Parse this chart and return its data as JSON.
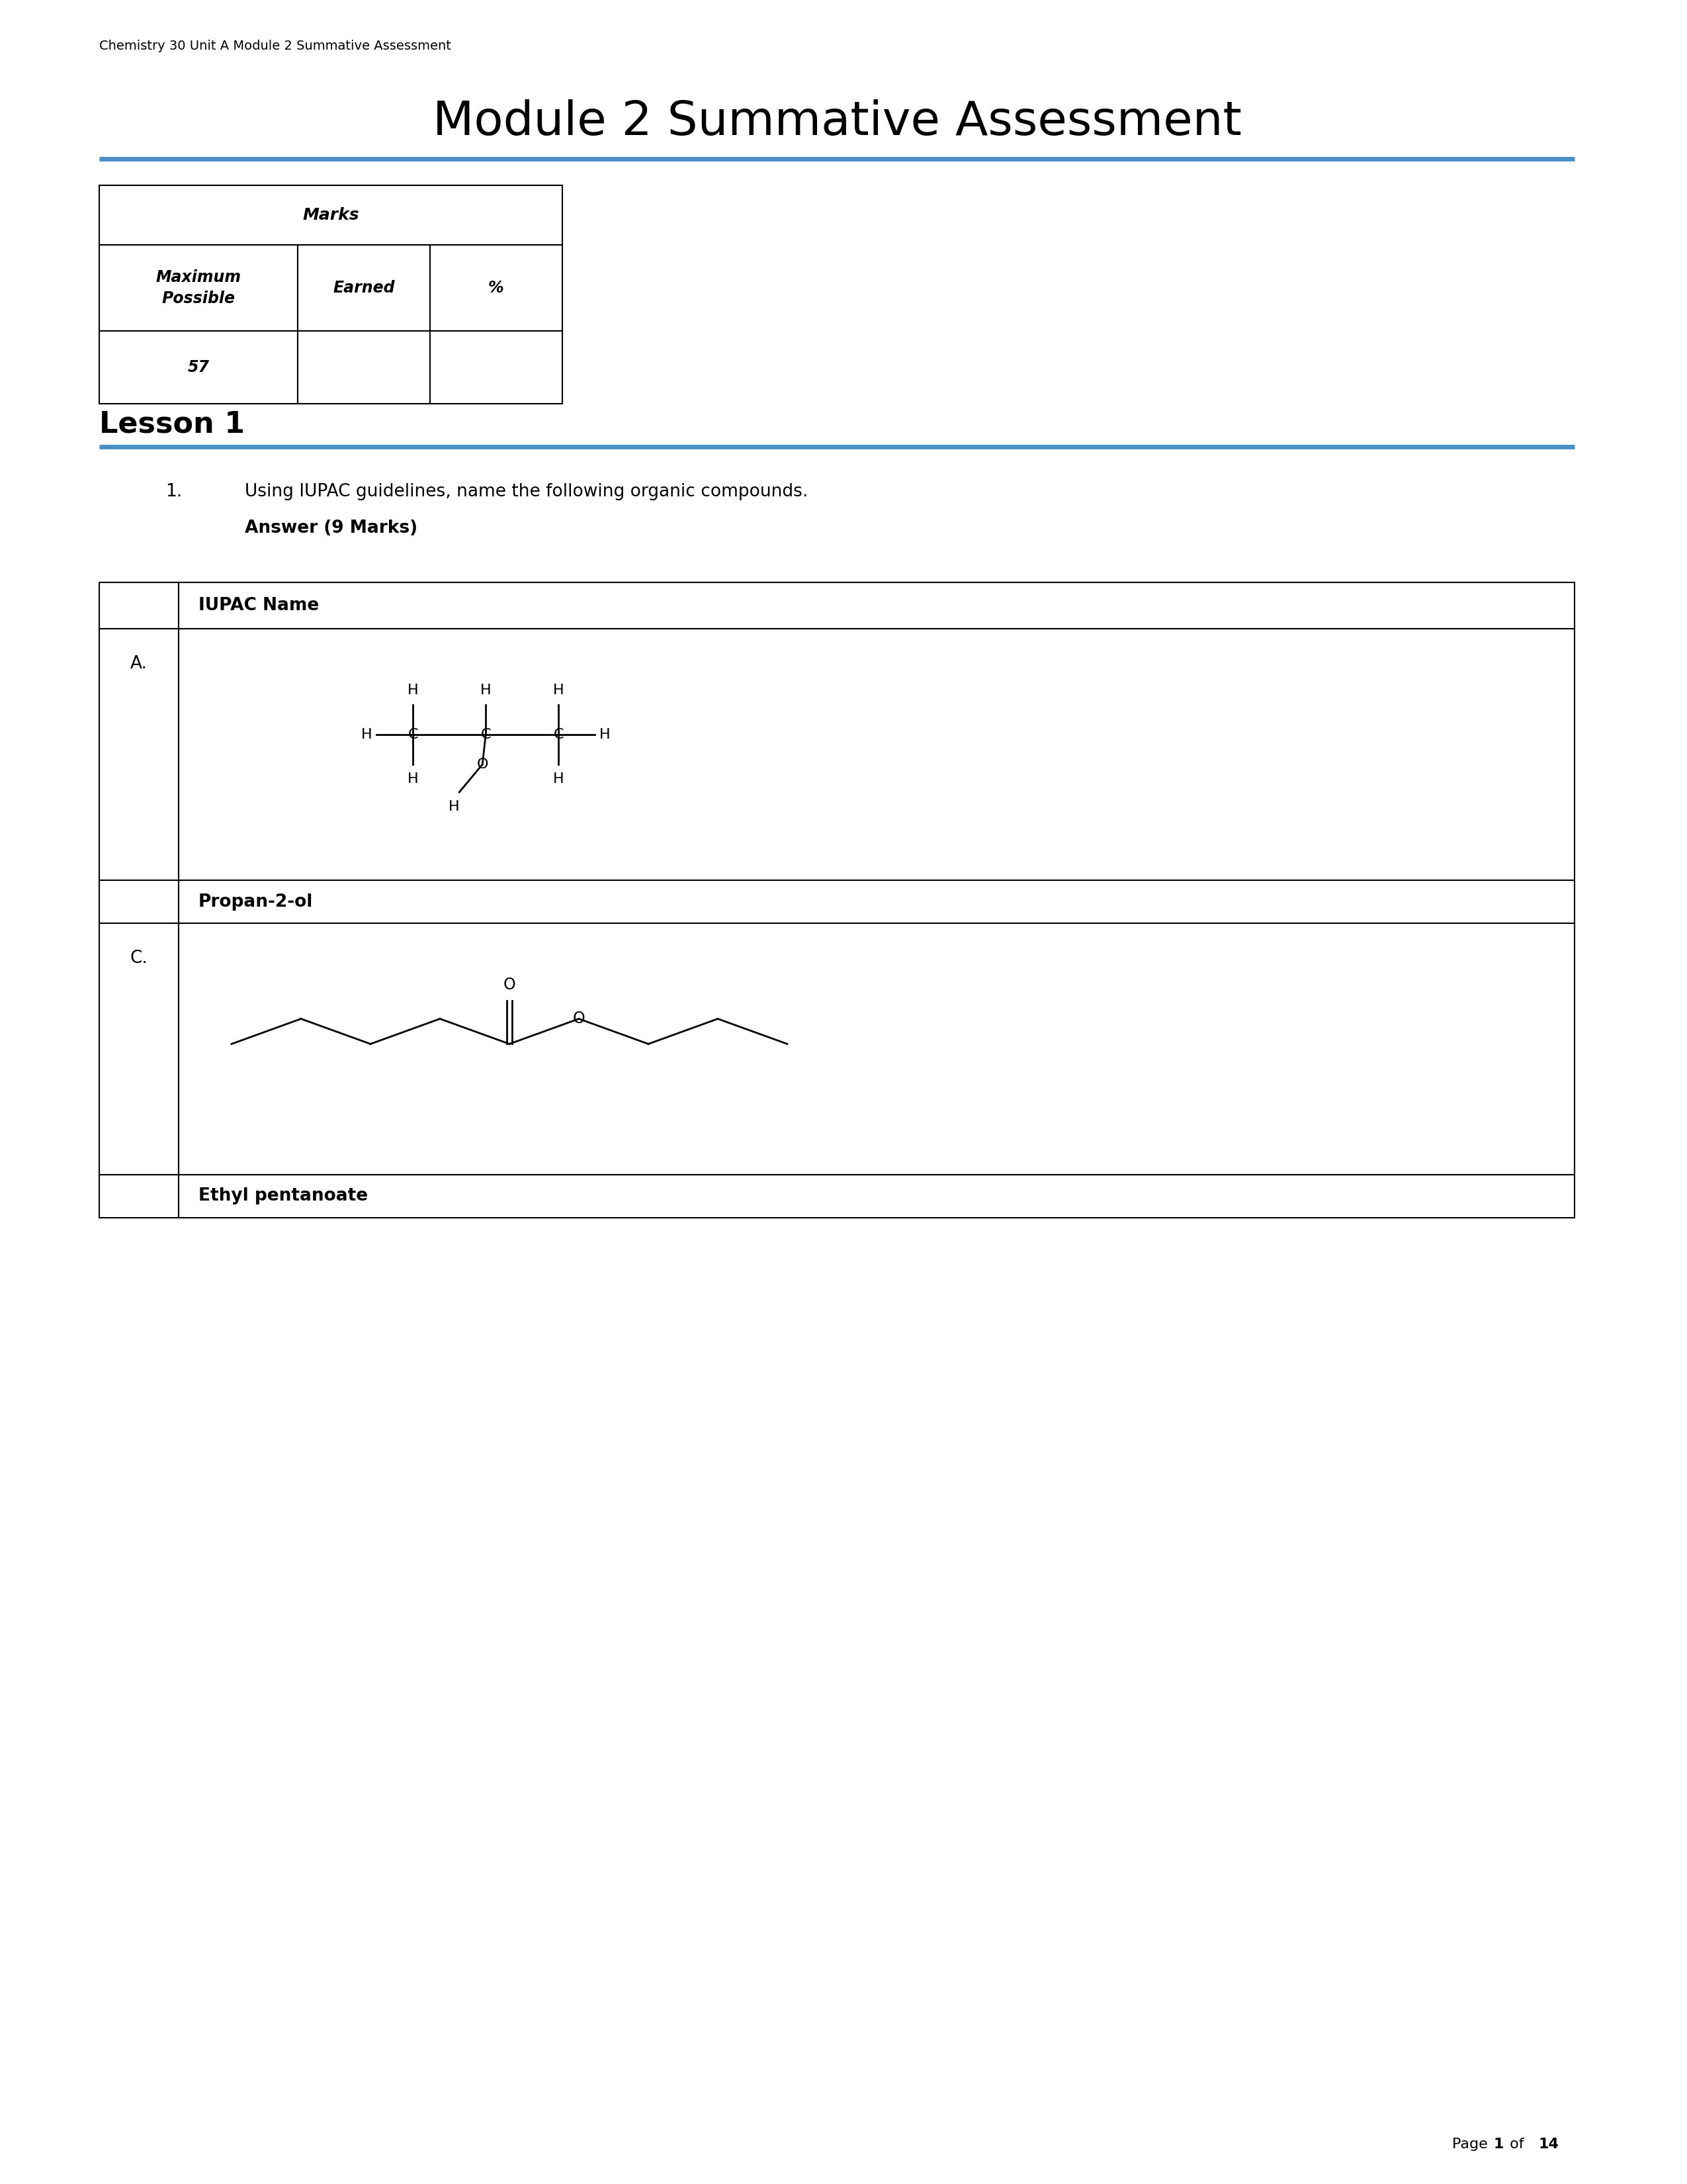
{
  "header_text": "Chemistry 30 Unit A Module 2 Summative Assessment",
  "title": "Module 2 Summative Assessment",
  "blue_line_color": "#4A90C4",
  "marks_table": {
    "header": "Marks",
    "col1": "Maximum\nPossible",
    "col2": "Earned",
    "col3": "%",
    "value": "57"
  },
  "lesson1_title": "Lesson 1",
  "question1_text": "Using IUPAC guidelines, name the following organic compounds.",
  "answer_label": "Answer (9 Marks)",
  "iupac_table": {
    "header": "IUPAC Name",
    "rowA_label": "A.",
    "rowA_answer": "Propan-2-ol",
    "rowC_label": "C.",
    "rowC_answer": "Ethyl pentanoate"
  },
  "page_bold": "1",
  "page_end_bold": "14",
  "bg_color": "#ffffff",
  "text_color": "#000000"
}
